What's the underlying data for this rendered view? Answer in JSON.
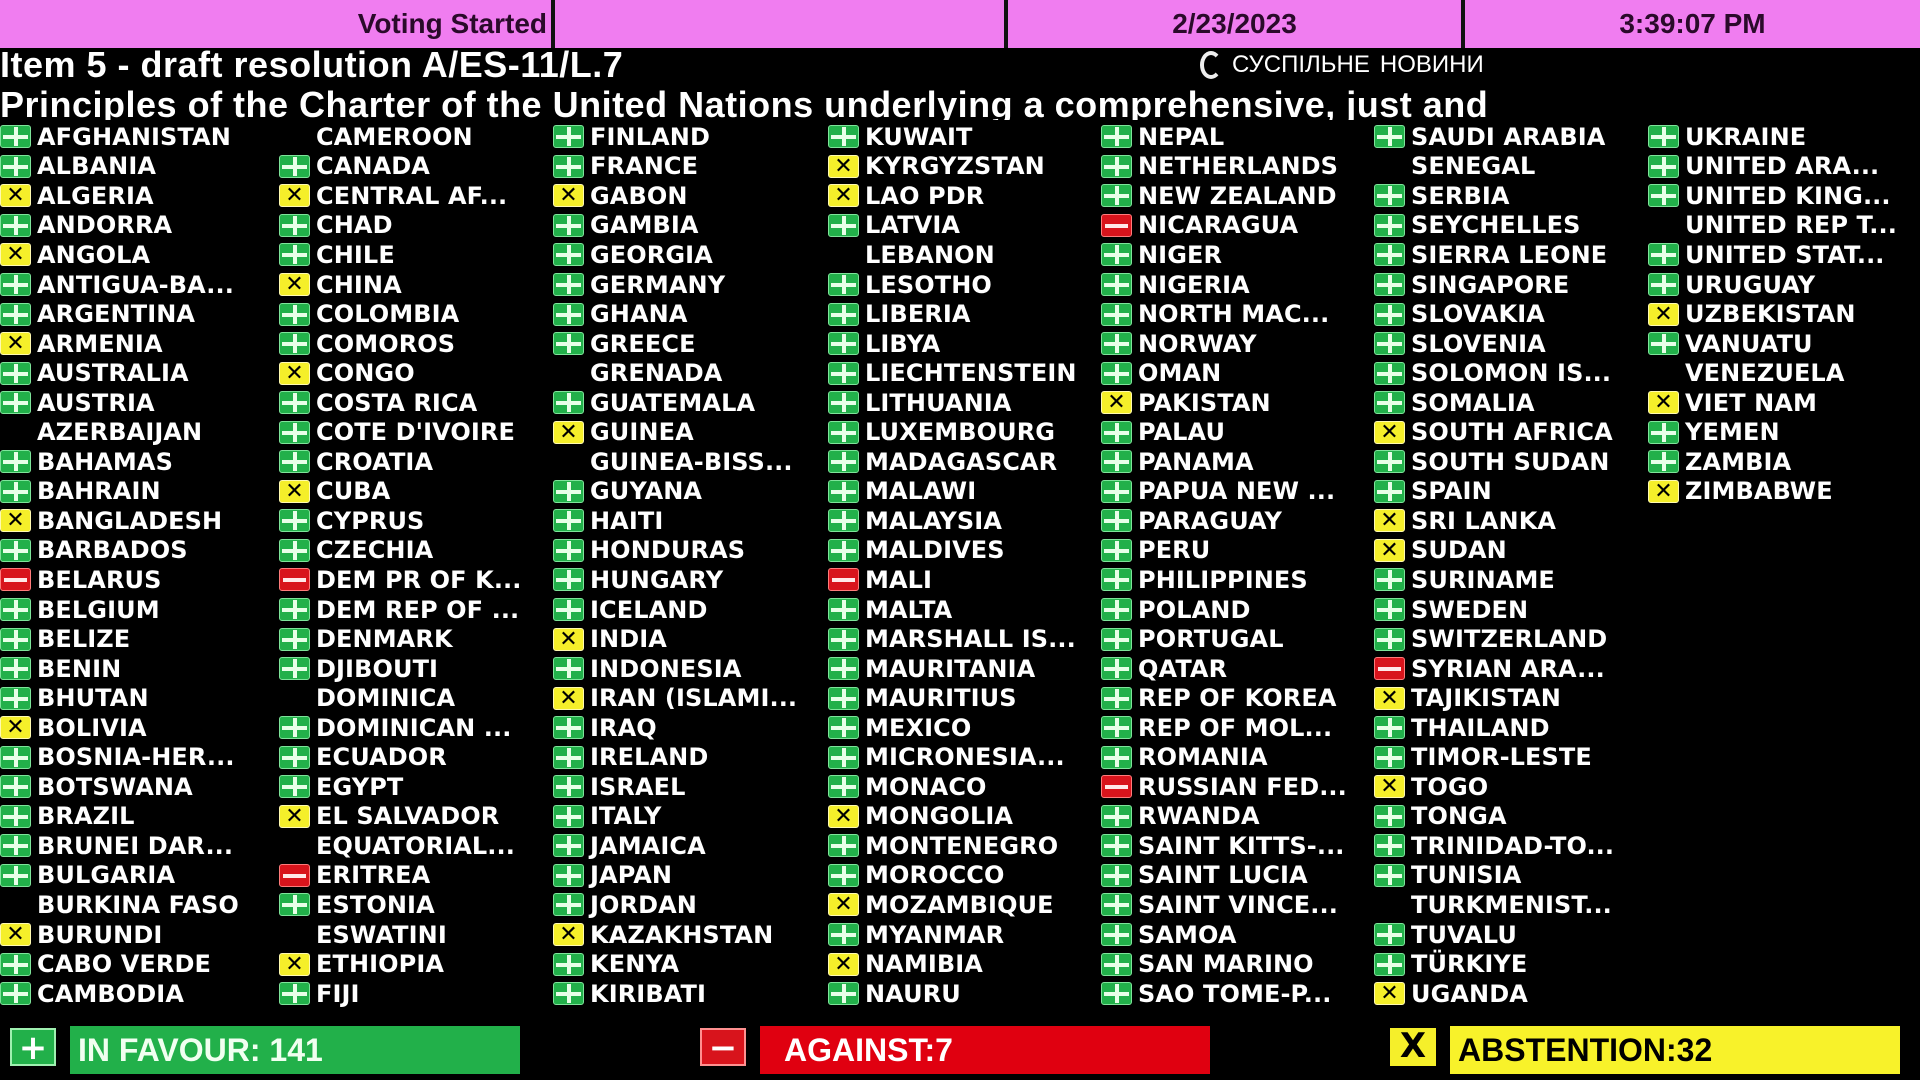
{
  "header": {
    "status": "Voting Started",
    "blank": "",
    "date": "2/23/2023",
    "time": "3:39:07 PM"
  },
  "item_title": "Item 5 - draft resolution A/ES-11/L.7",
  "item_subtitle": "Principles of the Charter of the United Nations underlying a comprehensive, just and",
  "logo": {
    "line1": "СУСПІЛЬНЕ",
    "line2": "НОВИНИ"
  },
  "colors": {
    "header_bg": "#f07df0",
    "in_favour": "#22b04a",
    "against": "#d8141c",
    "abstention": "#f5ef2a"
  },
  "vote_legend": {
    "Y": "plus-icon (in favour)",
    "N": "minus-icon (against)",
    "A": "x-icon (abstention)",
    "": "no vote"
  },
  "columns": [
    [
      [
        "AFGHANISTAN",
        "Y"
      ],
      [
        "ALBANIA",
        "Y"
      ],
      [
        "ALGERIA",
        "A"
      ],
      [
        "ANDORRA",
        "Y"
      ],
      [
        "ANGOLA",
        "A"
      ],
      [
        "ANTIGUA-BA...",
        "Y"
      ],
      [
        "ARGENTINA",
        "Y"
      ],
      [
        "ARMENIA",
        "A"
      ],
      [
        "AUSTRALIA",
        "Y"
      ],
      [
        "AUSTRIA",
        "Y"
      ],
      [
        "AZERBAIJAN",
        ""
      ],
      [
        "BAHAMAS",
        "Y"
      ],
      [
        "BAHRAIN",
        "Y"
      ],
      [
        "BANGLADESH",
        "A"
      ],
      [
        "BARBADOS",
        "Y"
      ],
      [
        "BELARUS",
        "N"
      ],
      [
        "BELGIUM",
        "Y"
      ],
      [
        "BELIZE",
        "Y"
      ],
      [
        "BENIN",
        "Y"
      ],
      [
        "BHUTAN",
        "Y"
      ],
      [
        "BOLIVIA",
        "A"
      ],
      [
        "BOSNIA-HER...",
        "Y"
      ],
      [
        "BOTSWANA",
        "Y"
      ],
      [
        "BRAZIL",
        "Y"
      ],
      [
        "BRUNEI DAR...",
        "Y"
      ],
      [
        "BULGARIA",
        "Y"
      ],
      [
        "BURKINA FASO",
        ""
      ],
      [
        "BURUNDI",
        "A"
      ],
      [
        "CABO VERDE",
        "Y"
      ],
      [
        "CAMBODIA",
        "Y"
      ]
    ],
    [
      [
        "CAMEROON",
        ""
      ],
      [
        "CANADA",
        "Y"
      ],
      [
        "CENTRAL AF...",
        "A"
      ],
      [
        "CHAD",
        "Y"
      ],
      [
        "CHILE",
        "Y"
      ],
      [
        "CHINA",
        "A"
      ],
      [
        "COLOMBIA",
        "Y"
      ],
      [
        "COMOROS",
        "Y"
      ],
      [
        "CONGO",
        "A"
      ],
      [
        "COSTA RICA",
        "Y"
      ],
      [
        "COTE D'IVOIRE",
        "Y"
      ],
      [
        "CROATIA",
        "Y"
      ],
      [
        "CUBA",
        "A"
      ],
      [
        "CYPRUS",
        "Y"
      ],
      [
        "CZECHIA",
        "Y"
      ],
      [
        "DEM PR OF K...",
        "N"
      ],
      [
        "DEM REP OF ...",
        "Y"
      ],
      [
        "DENMARK",
        "Y"
      ],
      [
        "DJIBOUTI",
        "Y"
      ],
      [
        "DOMINICA",
        ""
      ],
      [
        "DOMINICAN ...",
        "Y"
      ],
      [
        "ECUADOR",
        "Y"
      ],
      [
        "EGYPT",
        "Y"
      ],
      [
        "EL SALVADOR",
        "A"
      ],
      [
        "EQUATORIAL...",
        ""
      ],
      [
        "ERITREA",
        "N"
      ],
      [
        "ESTONIA",
        "Y"
      ],
      [
        "ESWATINI",
        ""
      ],
      [
        "ETHIOPIA",
        "A"
      ],
      [
        "FIJI",
        "Y"
      ]
    ],
    [
      [
        "FINLAND",
        "Y"
      ],
      [
        "FRANCE",
        "Y"
      ],
      [
        "GABON",
        "A"
      ],
      [
        "GAMBIA",
        "Y"
      ],
      [
        "GEORGIA",
        "Y"
      ],
      [
        "GERMANY",
        "Y"
      ],
      [
        "GHANA",
        "Y"
      ],
      [
        "GREECE",
        "Y"
      ],
      [
        "GRENADA",
        ""
      ],
      [
        "GUATEMALA",
        "Y"
      ],
      [
        "GUINEA",
        "A"
      ],
      [
        "GUINEA-BISS...",
        ""
      ],
      [
        "GUYANA",
        "Y"
      ],
      [
        "HAITI",
        "Y"
      ],
      [
        "HONDURAS",
        "Y"
      ],
      [
        "HUNGARY",
        "Y"
      ],
      [
        "ICELAND",
        "Y"
      ],
      [
        "INDIA",
        "A"
      ],
      [
        "INDONESIA",
        "Y"
      ],
      [
        "IRAN (ISLAMI...",
        "A"
      ],
      [
        "IRAQ",
        "Y"
      ],
      [
        "IRELAND",
        "Y"
      ],
      [
        "ISRAEL",
        "Y"
      ],
      [
        "ITALY",
        "Y"
      ],
      [
        "JAMAICA",
        "Y"
      ],
      [
        "JAPAN",
        "Y"
      ],
      [
        "JORDAN",
        "Y"
      ],
      [
        "KAZAKHSTAN",
        "A"
      ],
      [
        "KENYA",
        "Y"
      ],
      [
        "KIRIBATI",
        "Y"
      ]
    ],
    [
      [
        "KUWAIT",
        "Y"
      ],
      [
        "KYRGYZSTAN",
        "A"
      ],
      [
        "LAO PDR",
        "A"
      ],
      [
        "LATVIA",
        "Y"
      ],
      [
        "LEBANON",
        ""
      ],
      [
        "LESOTHO",
        "Y"
      ],
      [
        "LIBERIA",
        "Y"
      ],
      [
        "LIBYA",
        "Y"
      ],
      [
        "LIECHTENSTEIN",
        "Y"
      ],
      [
        "LITHUANIA",
        "Y"
      ],
      [
        "LUXEMBOURG",
        "Y"
      ],
      [
        "MADAGASCAR",
        "Y"
      ],
      [
        "MALAWI",
        "Y"
      ],
      [
        "MALAYSIA",
        "Y"
      ],
      [
        "MALDIVES",
        "Y"
      ],
      [
        "MALI",
        "N"
      ],
      [
        "MALTA",
        "Y"
      ],
      [
        "MARSHALL IS...",
        "Y"
      ],
      [
        "MAURITANIA",
        "Y"
      ],
      [
        "MAURITIUS",
        "Y"
      ],
      [
        "MEXICO",
        "Y"
      ],
      [
        "MICRONESIA...",
        "Y"
      ],
      [
        "MONACO",
        "Y"
      ],
      [
        "MONGOLIA",
        "A"
      ],
      [
        "MONTENEGRO",
        "Y"
      ],
      [
        "MOROCCO",
        "Y"
      ],
      [
        "MOZAMBIQUE",
        "A"
      ],
      [
        "MYANMAR",
        "Y"
      ],
      [
        "NAMIBIA",
        "A"
      ],
      [
        "NAURU",
        "Y"
      ]
    ],
    [
      [
        "NEPAL",
        "Y"
      ],
      [
        "NETHERLANDS",
        "Y"
      ],
      [
        "NEW ZEALAND",
        "Y"
      ],
      [
        "NICARAGUA",
        "N"
      ],
      [
        "NIGER",
        "Y"
      ],
      [
        "NIGERIA",
        "Y"
      ],
      [
        "NORTH MAC...",
        "Y"
      ],
      [
        "NORWAY",
        "Y"
      ],
      [
        "OMAN",
        "Y"
      ],
      [
        "PAKISTAN",
        "A"
      ],
      [
        "PALAU",
        "Y"
      ],
      [
        "PANAMA",
        "Y"
      ],
      [
        "PAPUA NEW ...",
        "Y"
      ],
      [
        "PARAGUAY",
        "Y"
      ],
      [
        "PERU",
        "Y"
      ],
      [
        "PHILIPPINES",
        "Y"
      ],
      [
        "POLAND",
        "Y"
      ],
      [
        "PORTUGAL",
        "Y"
      ],
      [
        "QATAR",
        "Y"
      ],
      [
        "REP OF KOREA",
        "Y"
      ],
      [
        "REP OF MOL...",
        "Y"
      ],
      [
        "ROMANIA",
        "Y"
      ],
      [
        "RUSSIAN FED...",
        "N"
      ],
      [
        "RWANDA",
        "Y"
      ],
      [
        "SAINT KITTS-...",
        "Y"
      ],
      [
        "SAINT LUCIA",
        "Y"
      ],
      [
        "SAINT VINCE...",
        "Y"
      ],
      [
        "SAMOA",
        "Y"
      ],
      [
        "SAN MARINO",
        "Y"
      ],
      [
        "SAO TOME-P...",
        "Y"
      ]
    ],
    [
      [
        "SAUDI ARABIA",
        "Y"
      ],
      [
        "SENEGAL",
        ""
      ],
      [
        "SERBIA",
        "Y"
      ],
      [
        "SEYCHELLES",
        "Y"
      ],
      [
        "SIERRA LEONE",
        "Y"
      ],
      [
        "SINGAPORE",
        "Y"
      ],
      [
        "SLOVAKIA",
        "Y"
      ],
      [
        "SLOVENIA",
        "Y"
      ],
      [
        "SOLOMON IS...",
        "Y"
      ],
      [
        "SOMALIA",
        "Y"
      ],
      [
        "SOUTH AFRICA",
        "A"
      ],
      [
        "SOUTH SUDAN",
        "Y"
      ],
      [
        "SPAIN",
        "Y"
      ],
      [
        "SRI LANKA",
        "A"
      ],
      [
        "SUDAN",
        "A"
      ],
      [
        "SURINAME",
        "Y"
      ],
      [
        "SWEDEN",
        "Y"
      ],
      [
        "SWITZERLAND",
        "Y"
      ],
      [
        "SYRIAN ARA...",
        "N"
      ],
      [
        "TAJIKISTAN",
        "A"
      ],
      [
        "THAILAND",
        "Y"
      ],
      [
        "TIMOR-LESTE",
        "Y"
      ],
      [
        "TOGO",
        "A"
      ],
      [
        "TONGA",
        "Y"
      ],
      [
        "TRINIDAD-TO...",
        "Y"
      ],
      [
        "TUNISIA",
        "Y"
      ],
      [
        "TURKMENIST...",
        ""
      ],
      [
        "TUVALU",
        "Y"
      ],
      [
        "TÜRKIYE",
        "Y"
      ],
      [
        "UGANDA",
        "A"
      ]
    ],
    [
      [
        "UKRAINE",
        "Y"
      ],
      [
        "UNITED ARA...",
        "Y"
      ],
      [
        "UNITED KING...",
        "Y"
      ],
      [
        "UNITED REP T...",
        ""
      ],
      [
        "UNITED STAT...",
        "Y"
      ],
      [
        "URUGUAY",
        "Y"
      ],
      [
        "UZBEKISTAN",
        "A"
      ],
      [
        "VANUATU",
        "Y"
      ],
      [
        "VENEZUELA",
        ""
      ],
      [
        "VIET NAM",
        "A"
      ],
      [
        "YEMEN",
        "Y"
      ],
      [
        "ZAMBIA",
        "Y"
      ],
      [
        "ZIMBABWE",
        "A"
      ]
    ]
  ],
  "totals": {
    "in_favour": {
      "label": "IN FAVOUR: 141",
      "value": 141,
      "icon_glyph": "+"
    },
    "against": {
      "label": "AGAINST:7",
      "value": 7,
      "icon_glyph": "−"
    },
    "abstention": {
      "label": "ABSTENTION:32",
      "value": 32,
      "icon_glyph": "X"
    }
  }
}
